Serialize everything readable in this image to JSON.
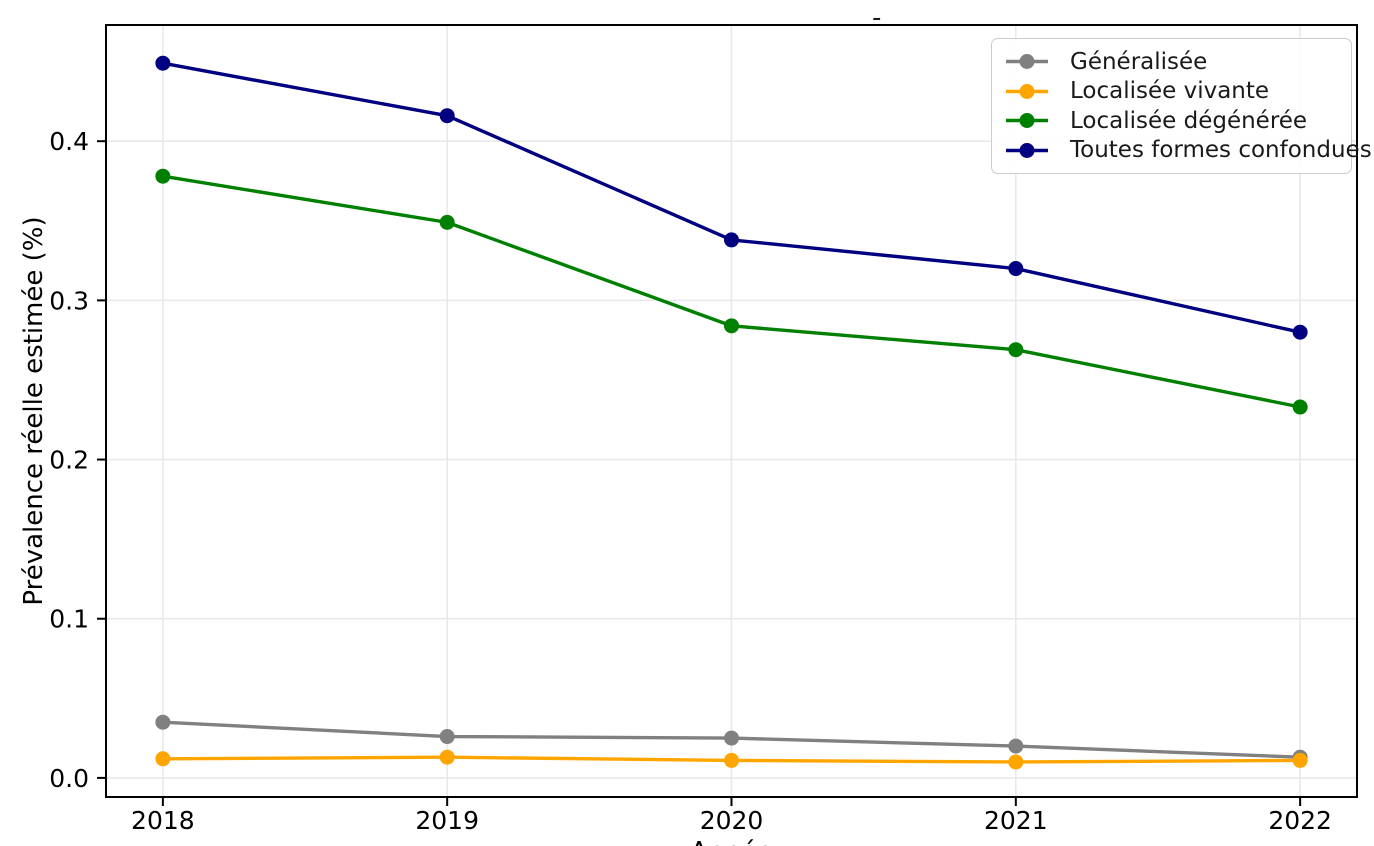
{
  "figure": {
    "title_remnant": "-"
  },
  "chart_data": {
    "type": "line",
    "title": "",
    "xlabel": "Année",
    "ylabel": "Prévalence réelle estimée (%)",
    "x": [
      2018,
      2019,
      2020,
      2021,
      2022
    ],
    "x_tick_labels": [
      "2018",
      "2019",
      "2020",
      "2021",
      "2022"
    ],
    "y_ticks": [
      0.0,
      0.1,
      0.2,
      0.3,
      0.4
    ],
    "y_tick_labels": [
      "0.0",
      "0.1",
      "0.2",
      "0.3",
      "0.4"
    ],
    "xlim": [
      2017.8,
      2022.2
    ],
    "ylim": [
      -0.012,
      0.473
    ],
    "grid": true,
    "legend_position": "upper right",
    "series": [
      {
        "name": "Généralisée",
        "color": "#808080",
        "values": [
          0.035,
          0.026,
          0.025,
          0.02,
          0.013
        ]
      },
      {
        "name": "Localisée vivante",
        "color": "#FFA500",
        "values": [
          0.012,
          0.013,
          0.011,
          0.01,
          0.011
        ]
      },
      {
        "name": "Localisée dégénérée",
        "color": "#008000",
        "values": [
          0.378,
          0.349,
          0.284,
          0.269,
          0.233
        ]
      },
      {
        "name": "Toutes formes confondues",
        "color": "#000080",
        "values": [
          0.449,
          0.416,
          0.338,
          0.32,
          0.28
        ]
      }
    ],
    "style": {
      "grid_color": "#e9e9e9",
      "spine_color": "#000000",
      "tick_font_px": 25,
      "axis_label_font_px": 26,
      "marker_radius": 7.5,
      "line_width": 3.4
    }
  }
}
